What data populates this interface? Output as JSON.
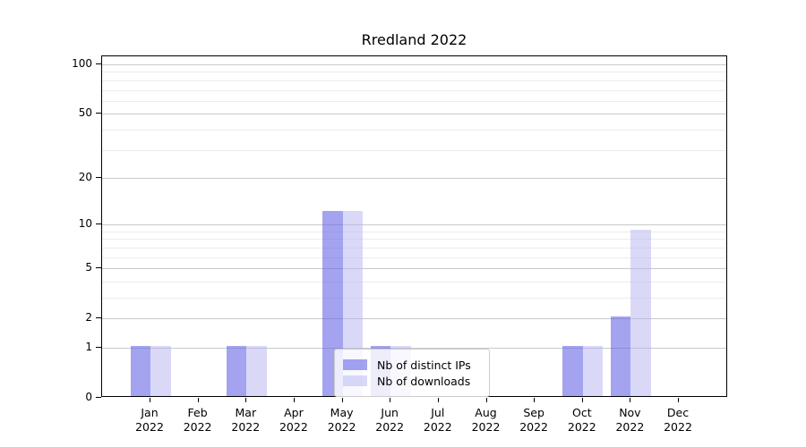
{
  "chart_data": {
    "type": "bar",
    "title": "Rredland 2022",
    "categories": [
      "Jan",
      "Feb",
      "Mar",
      "Apr",
      "May",
      "Jun",
      "Jul",
      "Aug",
      "Sep",
      "Oct",
      "Nov",
      "Dec"
    ],
    "category_year": "2022",
    "series": [
      {
        "name": "Nb of distinct IPs",
        "color": "rgba(102,102,230,0.6)",
        "values": [
          1,
          0,
          1,
          0,
          12,
          1,
          0,
          0,
          0,
          1,
          2,
          0
        ]
      },
      {
        "name": "Nb of downloads",
        "color": "rgba(180,180,240,0.5)",
        "values": [
          1,
          0,
          1,
          0,
          12,
          1,
          0,
          0,
          0,
          1,
          9,
          0
        ]
      }
    ],
    "y_axis": {
      "scale": "log1p",
      "tick_labels": [
        "0",
        "1",
        "2",
        "5",
        "10",
        "20",
        "50",
        "100"
      ],
      "tick_values": [
        0,
        1,
        2,
        5,
        10,
        20,
        50,
        100
      ],
      "minor_tick_values": [
        3,
        4,
        6,
        7,
        8,
        9,
        30,
        40,
        60,
        70,
        80,
        90
      ],
      "ylim": [
        0,
        112
      ]
    },
    "grid": "both",
    "legend_position": "lower center",
    "colors": {
      "grid_major": "#c9c9c9",
      "grid_minor": "#ececec",
      "legend_border": "#cccccc",
      "spine": "#000000"
    }
  }
}
